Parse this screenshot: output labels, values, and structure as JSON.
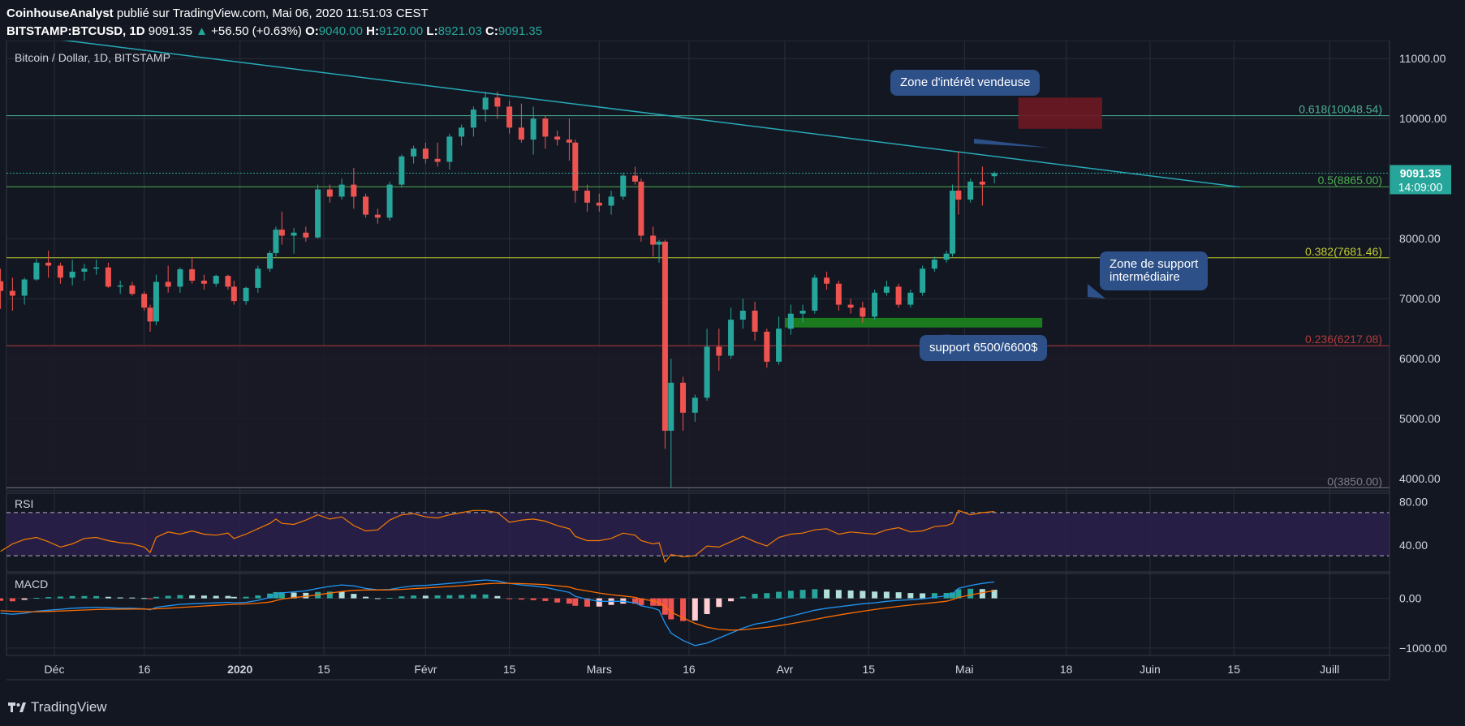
{
  "header": {
    "author": "CoinhouseAnalyst",
    "published_text": "publié sur TradingView.com, Mai 06, 2020 11:51:03 CEST",
    "symbol": "BITSTAMP:BTCUSD, 1D",
    "last": "9091.35",
    "change": "+56.50 (+0.63%)",
    "o_label": "O:",
    "o": "9040.00",
    "h_label": "H:",
    "h": "9120.00",
    "l_label": "L:",
    "l": "8921.03",
    "c_label": "C:",
    "c": "9091.35"
  },
  "footer": {
    "brand": "TradingView"
  },
  "colors": {
    "background": "#131722",
    "up": "#26a69a",
    "down": "#ef5350",
    "trendline": "#26a9b8",
    "rsi": "#f57c00",
    "macd": "#2196f3",
    "signal": "#ff6d00"
  },
  "callouts": {
    "sell_zone": "Zone d'intérêt vendeuse",
    "mid_support": "Zone de support\nintermédiaire",
    "support": "support 6500/6600$"
  },
  "chart_data": {
    "type": "candlestick",
    "title": "Bitcoin / Dollar, 1D, BITSTAMP",
    "price_axis": {
      "ticks": [
        4000,
        5000,
        6000,
        7000,
        8000,
        10000,
        11000
      ],
      "tick_labels": [
        "4000.00",
        "5000.00",
        "6000.00",
        "7000.00",
        "8000.00",
        "10000.00",
        "11000.00"
      ],
      "range": [
        3800,
        11300
      ]
    },
    "time_axis": {
      "labels": [
        "Déc",
        "16",
        "2020",
        "15",
        "Févr",
        "15",
        "Mars",
        "16",
        "Avr",
        "15",
        "Mai",
        "18",
        "Juin",
        "15",
        "Juill"
      ],
      "label_days": [
        0,
        15,
        31,
        45,
        62,
        76,
        91,
        106,
        122,
        136,
        152,
        169,
        183,
        197,
        213
      ],
      "range_days": [
        -8,
        223
      ]
    },
    "last_price": {
      "value": 9091.35,
      "label": "9091.35",
      "countdown": "14:09:00"
    },
    "fibonacci": [
      {
        "level": 0.618,
        "price": 10048.54,
        "label": "0.618(10048.54)",
        "color": "#4caf93"
      },
      {
        "level": 0.5,
        "price": 8865.0,
        "label": "0.5(8865.00)",
        "color": "#4caf50"
      },
      {
        "level": 0.382,
        "price": 7681.46,
        "label": "0.382(7681.46)",
        "color": "#c0ca33"
      },
      {
        "level": 0.236,
        "price": 6217.08,
        "label": "0.236(6217.08)",
        "color": "#b23b3b"
      },
      {
        "level": 0,
        "price": 3850.0,
        "label": "0(3850.00)",
        "color": "#787b86"
      }
    ],
    "trendline": {
      "from": {
        "day": -2,
        "price": 11350
      },
      "to": {
        "day": 198,
        "price": 8860
      }
    },
    "sell_zone": {
      "from_day": 161,
      "to_day": 175,
      "price_low": 9830,
      "price_high": 10350
    },
    "support_zone": {
      "from_day": 122,
      "to_day": 165,
      "price_low": 6520,
      "price_high": 6680
    },
    "ohlc": [
      [
        "2019-11-22",
        7290,
        7500,
        6830,
        7130
      ],
      [
        "2019-11-24",
        7130,
        7350,
        6800,
        7050
      ],
      [
        "2019-11-26",
        7050,
        7350,
        6900,
        7320
      ],
      [
        "2019-11-28",
        7320,
        7660,
        7300,
        7600
      ],
      [
        "2019-11-30",
        7600,
        7800,
        7350,
        7550
      ],
      [
        "2019-12-02",
        7550,
        7600,
        7250,
        7350
      ],
      [
        "2019-12-04",
        7350,
        7650,
        7220,
        7450
      ],
      [
        "2019-12-06",
        7450,
        7580,
        7300,
        7500
      ],
      [
        "2019-12-08",
        7500,
        7650,
        7400,
        7520
      ],
      [
        "2019-12-10",
        7520,
        7600,
        7180,
        7200
      ],
      [
        "2019-12-12",
        7200,
        7300,
        7080,
        7220
      ],
      [
        "2019-12-14",
        7220,
        7280,
        7050,
        7080
      ],
      [
        "2019-12-16",
        7080,
        7120,
        6800,
        6850
      ],
      [
        "2019-12-17",
        6850,
        6900,
        6450,
        6620
      ],
      [
        "2019-12-18",
        6620,
        7400,
        6560,
        7280
      ],
      [
        "2019-12-20",
        7280,
        7550,
        7100,
        7200
      ],
      [
        "2019-12-22",
        7200,
        7520,
        7100,
        7490
      ],
      [
        "2019-12-24",
        7490,
        7680,
        7250,
        7300
      ],
      [
        "2019-12-26",
        7300,
        7400,
        7150,
        7250
      ],
      [
        "2019-12-28",
        7250,
        7400,
        7200,
        7380
      ],
      [
        "2019-12-30",
        7380,
        7400,
        7150,
        7200
      ],
      [
        "2019-12-31",
        7200,
        7300,
        6900,
        6960
      ],
      [
        "2020-01-02",
        6960,
        7200,
        6900,
        7180
      ],
      [
        "2020-01-04",
        7180,
        7550,
        7100,
        7500
      ],
      [
        "2020-01-06",
        7500,
        7800,
        7450,
        7760
      ],
      [
        "2020-01-07",
        7760,
        8200,
        7700,
        8150
      ],
      [
        "2020-01-08",
        8150,
        8450,
        7900,
        8050
      ],
      [
        "2020-01-10",
        8050,
        8180,
        7750,
        8100
      ],
      [
        "2020-01-12",
        8100,
        8200,
        7950,
        8020
      ],
      [
        "2020-01-14",
        8020,
        8900,
        8000,
        8820
      ],
      [
        "2020-01-16",
        8820,
        8900,
        8600,
        8700
      ],
      [
        "2020-01-18",
        8700,
        9000,
        8650,
        8900
      ],
      [
        "2020-01-20",
        8900,
        9180,
        8500,
        8700
      ],
      [
        "2020-01-22",
        8700,
        8750,
        8350,
        8400
      ],
      [
        "2020-01-24",
        8400,
        8500,
        8250,
        8350
      ],
      [
        "2020-01-26",
        8350,
        8950,
        8300,
        8900
      ],
      [
        "2020-01-28",
        8900,
        9400,
        8850,
        9370
      ],
      [
        "2020-01-30",
        9370,
        9550,
        9250,
        9500
      ],
      [
        "2020-02-01",
        9500,
        9600,
        9250,
        9330
      ],
      [
        "2020-02-03",
        9330,
        9600,
        9200,
        9280
      ],
      [
        "2020-02-05",
        9280,
        9750,
        9150,
        9700
      ],
      [
        "2020-02-07",
        9700,
        9900,
        9550,
        9850
      ],
      [
        "2020-02-09",
        9850,
        10200,
        9700,
        10150
      ],
      [
        "2020-02-11",
        10150,
        10450,
        9950,
        10350
      ],
      [
        "2020-02-13",
        10350,
        10450,
        10000,
        10200
      ],
      [
        "2020-02-15",
        10200,
        10300,
        9750,
        9850
      ],
      [
        "2020-02-17",
        9850,
        10250,
        9600,
        9650
      ],
      [
        "2020-02-19",
        9650,
        10200,
        9400,
        10000
      ],
      [
        "2020-02-21",
        10000,
        10050,
        9500,
        9700
      ],
      [
        "2020-02-23",
        9700,
        9800,
        9550,
        9650
      ],
      [
        "2020-02-25",
        9650,
        10000,
        9300,
        9600
      ],
      [
        "2020-02-26",
        9600,
        9650,
        8600,
        8800
      ],
      [
        "2020-02-28",
        8800,
        8900,
        8450,
        8600
      ],
      [
        "2020-03-01",
        8600,
        8750,
        8450,
        8550
      ],
      [
        "2020-03-03",
        8550,
        8800,
        8400,
        8700
      ],
      [
        "2020-03-05",
        8700,
        9100,
        8650,
        9050
      ],
      [
        "2020-03-07",
        9050,
        9200,
        8900,
        8950
      ],
      [
        "2020-03-08",
        8950,
        9000,
        7950,
        8050
      ],
      [
        "2020-03-10",
        8050,
        8200,
        7700,
        7900
      ],
      [
        "2020-03-11",
        7900,
        7980,
        7600,
        7950
      ],
      [
        "2020-03-12",
        7950,
        7980,
        4500,
        4800
      ],
      [
        "2020-03-13",
        4800,
        6000,
        3850,
        5600
      ],
      [
        "2020-03-15",
        5600,
        5700,
        4800,
        5100
      ],
      [
        "2020-03-17",
        5100,
        5400,
        4950,
        5350
      ],
      [
        "2020-03-19",
        5350,
        6500,
        5300,
        6200
      ],
      [
        "2020-03-21",
        6200,
        6500,
        5800,
        6050
      ],
      [
        "2020-03-23",
        6050,
        6850,
        6000,
        6650
      ],
      [
        "2020-03-25",
        6650,
        7000,
        6500,
        6800
      ],
      [
        "2020-03-27",
        6800,
        6950,
        6300,
        6450
      ],
      [
        "2020-03-29",
        6450,
        6500,
        5850,
        5950
      ],
      [
        "2020-03-31",
        5950,
        6700,
        5900,
        6500
      ],
      [
        "2020-04-02",
        6500,
        6900,
        6400,
        6750
      ],
      [
        "2020-04-04",
        6750,
        6900,
        6600,
        6800
      ],
      [
        "2020-04-06",
        6800,
        7400,
        6750,
        7350
      ],
      [
        "2020-04-08",
        7350,
        7450,
        7150,
        7250
      ],
      [
        "2020-04-10",
        7250,
        7300,
        6800,
        6900
      ],
      [
        "2020-04-12",
        6900,
        7000,
        6750,
        6850
      ],
      [
        "2020-04-14",
        6850,
        6950,
        6600,
        6700
      ],
      [
        "2020-04-16",
        6700,
        7150,
        6650,
        7100
      ],
      [
        "2020-04-18",
        7100,
        7300,
        7050,
        7200
      ],
      [
        "2020-04-20",
        7200,
        7250,
        6850,
        6900
      ],
      [
        "2020-04-22",
        6900,
        7150,
        6850,
        7100
      ],
      [
        "2020-04-24",
        7100,
        7550,
        7050,
        7500
      ],
      [
        "2020-04-26",
        7500,
        7700,
        7450,
        7650
      ],
      [
        "2020-04-28",
        7650,
        7800,
        7600,
        7750
      ],
      [
        "2020-04-29",
        7750,
        8900,
        7700,
        8800
      ],
      [
        "2020-04-30",
        8800,
        9450,
        8400,
        8650
      ],
      [
        "2020-05-02",
        8650,
        9000,
        8600,
        8950
      ],
      [
        "2020-05-04",
        8950,
        9200,
        8550,
        8900
      ],
      [
        "2020-05-06",
        9040,
        9120,
        8921.03,
        9091.35
      ]
    ],
    "rsi": {
      "label": "RSI",
      "ticks": [
        40,
        80
      ],
      "tick_labels": [
        "40.00",
        "80.00"
      ],
      "bands": [
        30,
        70
      ],
      "range": [
        15,
        88
      ],
      "values": [
        34,
        41,
        45,
        47,
        43,
        38,
        41,
        46,
        47,
        44,
        42,
        41,
        38,
        33,
        47,
        52,
        50,
        53,
        50,
        49,
        51,
        46,
        50,
        55,
        60,
        64,
        60,
        59,
        63,
        68,
        64,
        66,
        58,
        53,
        54,
        63,
        68,
        69,
        66,
        65,
        68,
        70,
        72,
        72,
        70,
        61,
        63,
        64,
        62,
        58,
        55,
        48,
        44,
        44,
        46,
        51,
        49,
        44,
        41,
        42,
        24,
        31,
        29,
        30,
        39,
        38,
        43,
        48,
        43,
        39,
        47,
        50,
        51,
        54,
        55,
        50,
        52,
        51,
        50,
        54,
        56,
        52,
        53,
        57,
        58,
        60,
        72,
        68,
        70,
        71
      ]
    },
    "macd": {
      "label": "MACD",
      "ticks": [
        0,
        -1000
      ],
      "tick_labels": [
        "0.00",
        "−1000.00"
      ],
      "range": [
        -1150,
        500
      ],
      "macd": [
        -300,
        -320,
        -300,
        -260,
        -240,
        -220,
        -200,
        -190,
        -180,
        -190,
        -200,
        -200,
        -210,
        -230,
        -180,
        -150,
        -120,
        -110,
        -100,
        -90,
        -80,
        -90,
        -80,
        -40,
        20,
        80,
        110,
        130,
        150,
        200,
        240,
        270,
        250,
        200,
        170,
        180,
        220,
        250,
        260,
        280,
        300,
        320,
        350,
        370,
        350,
        300,
        270,
        250,
        220,
        170,
        120,
        40,
        -20,
        -60,
        -60,
        -60,
        -90,
        -150,
        -200,
        -240,
        -500,
        -700,
        -850,
        -950,
        -900,
        -800,
        -700,
        -600,
        -520,
        -480,
        -420,
        -360,
        -300,
        -240,
        -200,
        -170,
        -140,
        -110,
        -90,
        -60,
        -40,
        -30,
        -10,
        20,
        50,
        90,
        200,
        260,
        300,
        330
      ],
      "signal": [
        -250,
        -260,
        -270,
        -270,
        -265,
        -255,
        -245,
        -235,
        -225,
        -220,
        -218,
        -215,
        -215,
        -218,
        -210,
        -200,
        -185,
        -170,
        -155,
        -140,
        -128,
        -120,
        -112,
        -98,
        -75,
        -45,
        -15,
        15,
        40,
        72,
        105,
        138,
        160,
        168,
        168,
        170,
        180,
        194,
        207,
        222,
        238,
        254,
        273,
        292,
        304,
        303,
        296,
        287,
        274,
        253,
        227,
        190,
        148,
        106,
        73,
        47,
        20,
        -14,
        -51,
        -89,
        -171,
        -277,
        -392,
        -504,
        -583,
        -626,
        -641,
        -633,
        -610,
        -584,
        -551,
        -513,
        -470,
        -424,
        -379,
        -337,
        -298,
        -260,
        -226,
        -193,
        -162,
        -136,
        -111,
        -85,
        -58,
        -28,
        18,
        67,
        114,
        157
      ]
    }
  }
}
